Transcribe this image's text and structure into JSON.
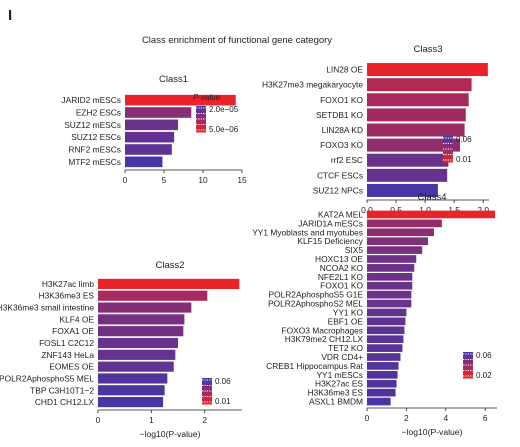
{
  "figure": {
    "panel_letter": "I",
    "title": "Class enrichment of functional gene category"
  },
  "colors": {
    "low_p": "#e8232a",
    "high_p": "#4a35a4"
  },
  "chart_data": [
    {
      "type": "bar",
      "orientation": "horizontal",
      "title": "Class1",
      "categories": [
        "JARID2 mESCs",
        "EZH2 ESCs",
        "SUZ12 mESCs",
        "SUZ12 ESCs",
        "RNF2 mESCs",
        "MTF2 mESCs"
      ],
      "values": [
        14.2,
        8.5,
        6.8,
        6.3,
        6.0,
        4.8
      ],
      "pvalues": [
        6e-15,
        3e-09,
        1.6e-07,
        5e-07,
        1e-06,
        1.6e-05
      ],
      "xlim": [
        0,
        15
      ],
      "xticks": [
        0,
        5,
        10,
        15
      ],
      "xlabel": "",
      "legend": {
        "title": "P-value",
        "labels": [
          "2.0e−05",
          "5.0e−06"
        ],
        "position": "inside-right"
      }
    },
    {
      "type": "bar",
      "orientation": "horizontal",
      "title": "Class3",
      "categories": [
        "LIN28 OE",
        "H3K27me3 megakaryocyte",
        "FOXO1 KO",
        "SETDB1 KO",
        "LIN28A KD",
        "FOXO3 KO",
        "rrf2 ESC",
        "CTCF ESCs",
        "SUZ12 NPCs"
      ],
      "values": [
        2.08,
        1.8,
        1.75,
        1.7,
        1.68,
        1.6,
        1.4,
        1.38,
        1.22
      ],
      "pvalues": [
        0.008,
        0.016,
        0.018,
        0.02,
        0.021,
        0.025,
        0.04,
        0.042,
        0.06
      ],
      "xlim": [
        0,
        2.1
      ],
      "xticks": [
        0.0,
        0.5,
        1.0,
        1.5,
        2.0
      ],
      "xlabel": "",
      "legend": {
        "title": "",
        "labels": [
          "0.06",
          "0.01"
        ],
        "position": "inside-right"
      }
    },
    {
      "type": "bar",
      "orientation": "horizontal",
      "title": "Class2",
      "categories": [
        "H3K27ac limb",
        "H3K36me3 ES",
        "H3K36me3 small intestine",
        "KLF4 OE",
        "FOXA1 OE",
        "FOSL1 C2C12",
        "ZNF143 HeLa",
        "EOMES OE",
        "POLR2AphosphoS5 MEL",
        "TBP C3H10T1−2",
        "CHD1 CH12.LX"
      ],
      "values": [
        2.65,
        2.05,
        1.75,
        1.62,
        1.6,
        1.5,
        1.45,
        1.42,
        1.3,
        1.25,
        1.22
      ],
      "pvalues": [
        0.0022,
        0.009,
        0.018,
        0.024,
        0.025,
        0.032,
        0.035,
        0.038,
        0.05,
        0.056,
        0.06
      ],
      "xlim": [
        0,
        2.7
      ],
      "xticks": [
        0,
        1,
        2
      ],
      "xlabel": "−log10(P-value)",
      "legend": {
        "title": "",
        "labels": [
          "0.06",
          "0.01"
        ],
        "position": "inside-right"
      }
    },
    {
      "type": "bar",
      "orientation": "horizontal",
      "title": "Class4",
      "categories": [
        "KAT2A MEL",
        "JARID1A mESCs",
        "YY1 Myoblasts and myotubes",
        "KLF15 Deficiency",
        "SIX5",
        "HOXC13 OE",
        "NCOA2 KO",
        "NFE2L1 KO",
        "FOXO1 KO",
        "POLR2AphosphoS5 G1E",
        "POLR2AphosphoS2 MEL",
        "YY1 KO",
        "EBF1 OE",
        "FOXO3 Macrophages",
        "H3K79me2 CH12.LX",
        "TET2 KO",
        "VDR CD4+",
        "CREB1 Hippocampus Rat",
        "YY1 mESCs",
        "H3K27ac ES",
        "H3K36me3 ES",
        "ASXL1 BMDM"
      ],
      "values": [
        6.5,
        3.8,
        3.4,
        3.1,
        2.8,
        2.5,
        2.4,
        2.3,
        2.3,
        2.25,
        2.25,
        2.0,
        1.95,
        1.9,
        1.85,
        1.8,
        1.7,
        1.6,
        1.55,
        1.5,
        1.45,
        1.2
      ],
      "pvalues": [
        3e-07,
        0.00016,
        0.0004,
        0.0008,
        0.0016,
        0.003,
        0.004,
        0.005,
        0.005,
        0.0056,
        0.0056,
        0.01,
        0.011,
        0.013,
        0.014,
        0.016,
        0.02,
        0.025,
        0.028,
        0.032,
        0.035,
        0.06
      ],
      "xlim": [
        0,
        6.6
      ],
      "xticks": [
        0,
        2,
        4,
        6
      ],
      "xlabel": "−log10(P-value)",
      "legend": {
        "title": "",
        "labels": [
          "0.06",
          "0.02"
        ],
        "position": "inside-right"
      }
    }
  ]
}
